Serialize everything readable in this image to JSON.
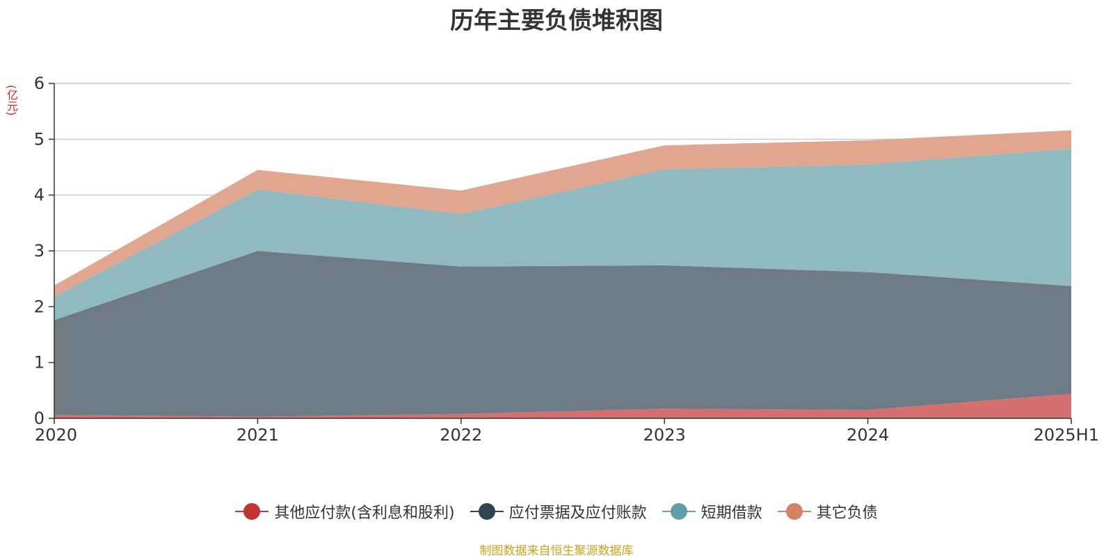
{
  "chart_data": {
    "type": "area",
    "stacked": true,
    "title": "历年主要负债堆积图",
    "ylabel": "(亿元)",
    "categories": [
      "2020",
      "2021",
      "2022",
      "2023",
      "2024",
      "2025H1"
    ],
    "ylim": [
      0,
      6
    ],
    "yticks": [
      "0",
      "1",
      "2",
      "3",
      "4",
      "5",
      "6"
    ],
    "grid": true,
    "legend_position": "bottom",
    "series": [
      {
        "name": "其他应付款(含利息和股利)",
        "color": "#c23531",
        "fill": "#d47070",
        "values": [
          0.06,
          0.03,
          0.08,
          0.17,
          0.15,
          0.44
        ]
      },
      {
        "name": "应付票据及应付账款",
        "color": "#2f4554",
        "fill": "#6e7a84",
        "values": [
          1.7,
          2.97,
          2.64,
          2.57,
          2.47,
          1.93
        ]
      },
      {
        "name": "短期借款",
        "color": "#61a0a8",
        "fill": "#91bac0",
        "values": [
          0.42,
          1.1,
          0.94,
          1.72,
          1.93,
          2.46
        ]
      },
      {
        "name": "其它负债",
        "color": "#d48265",
        "fill": "#e0a690",
        "values": [
          0.2,
          0.35,
          0.42,
          0.43,
          0.43,
          0.33
        ]
      }
    ]
  },
  "source_note": "制图数据来自恒生聚源数据库"
}
